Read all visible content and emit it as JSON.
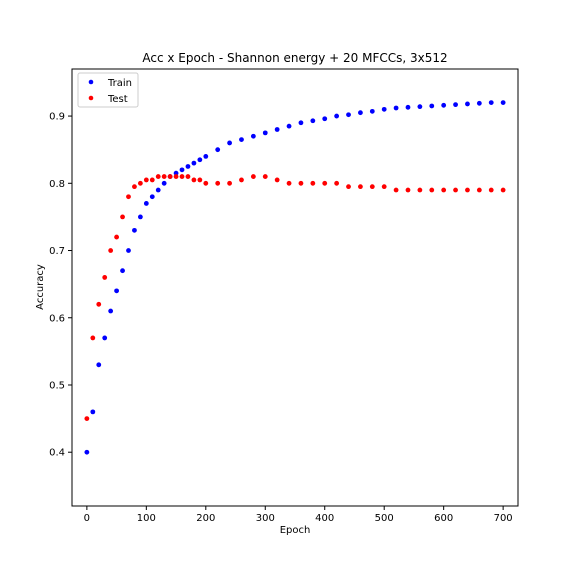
{
  "chart_data": {
    "type": "scatter",
    "title": "Acc x Epoch - Shannon energy + 20 MFCCs, 3x512",
    "xlabel": "Epoch",
    "ylabel": "Accuracy",
    "xlim": [
      -25,
      725
    ],
    "ylim": [
      0.32,
      0.97
    ],
    "xticks": [
      0,
      100,
      200,
      300,
      400,
      500,
      600,
      700
    ],
    "yticks": [
      0.4,
      0.5,
      0.6,
      0.7,
      0.8,
      0.9
    ],
    "ytick_labels": [
      "0.4",
      "0.5",
      "0.6",
      "0.7",
      "0.8",
      "0.9"
    ],
    "grid": false,
    "legend_position": "top-left",
    "series": [
      {
        "name": "Train",
        "color": "#0000ff",
        "x": [
          0,
          10,
          20,
          30,
          40,
          50,
          60,
          70,
          80,
          90,
          100,
          110,
          120,
          130,
          140,
          150,
          160,
          170,
          180,
          190,
          200,
          220,
          240,
          260,
          280,
          300,
          320,
          340,
          360,
          380,
          400,
          420,
          440,
          460,
          480,
          500,
          520,
          540,
          560,
          580,
          600,
          620,
          640,
          660,
          680,
          700
        ],
        "y": [
          0.4,
          0.46,
          0.53,
          0.57,
          0.61,
          0.64,
          0.67,
          0.7,
          0.73,
          0.75,
          0.77,
          0.78,
          0.79,
          0.8,
          0.81,
          0.815,
          0.82,
          0.825,
          0.83,
          0.835,
          0.84,
          0.85,
          0.86,
          0.865,
          0.87,
          0.875,
          0.88,
          0.885,
          0.89,
          0.893,
          0.896,
          0.9,
          0.902,
          0.905,
          0.907,
          0.91,
          0.912,
          0.913,
          0.914,
          0.915,
          0.916,
          0.917,
          0.918,
          0.919,
          0.92,
          0.92
        ]
      },
      {
        "name": "Test",
        "color": "#ff0000",
        "x": [
          0,
          10,
          20,
          30,
          40,
          50,
          60,
          70,
          80,
          90,
          100,
          110,
          120,
          130,
          140,
          150,
          160,
          170,
          180,
          190,
          200,
          220,
          240,
          260,
          280,
          300,
          320,
          340,
          360,
          380,
          400,
          420,
          440,
          460,
          480,
          500,
          520,
          540,
          560,
          580,
          600,
          620,
          640,
          660,
          680,
          700
        ],
        "y": [
          0.45,
          0.57,
          0.62,
          0.66,
          0.7,
          0.72,
          0.75,
          0.78,
          0.795,
          0.8,
          0.805,
          0.805,
          0.81,
          0.81,
          0.81,
          0.81,
          0.81,
          0.81,
          0.805,
          0.805,
          0.8,
          0.8,
          0.8,
          0.805,
          0.81,
          0.81,
          0.805,
          0.8,
          0.8,
          0.8,
          0.8,
          0.8,
          0.795,
          0.795,
          0.795,
          0.795,
          0.79,
          0.79,
          0.79,
          0.79,
          0.79,
          0.79,
          0.79,
          0.79,
          0.79,
          0.79
        ]
      }
    ]
  }
}
